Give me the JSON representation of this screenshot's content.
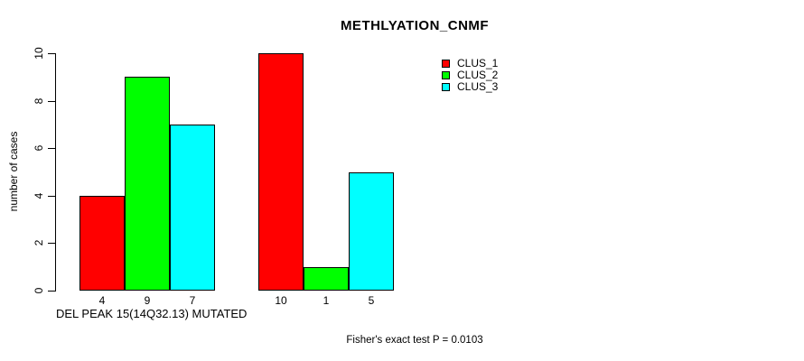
{
  "chart_data": {
    "type": "bar",
    "title": "METHLYATION_CNMF",
    "ylabel": "number of cases",
    "xlabel": "DEL PEAK 15(14Q32.13) MUTATED",
    "footer": "Fisher's exact test P = 0.0103",
    "ylim": [
      0,
      10
    ],
    "yticks": [
      0,
      2,
      4,
      6,
      8,
      10
    ],
    "grid": false,
    "legend_position": "top-right",
    "series_names": [
      "CLUS_1",
      "CLUS_2",
      "CLUS_3"
    ],
    "series_colors": [
      "#ff0000",
      "#00ff00",
      "#00ffff"
    ],
    "groups": [
      {
        "values": [
          4,
          9,
          7
        ],
        "bar_labels": [
          "4",
          "9",
          "7"
        ]
      },
      {
        "values": [
          10,
          1,
          5
        ],
        "bar_labels": [
          "10",
          "1",
          "5"
        ]
      }
    ],
    "legend": [
      {
        "label": "CLUS_1",
        "color": "#ff0000"
      },
      {
        "label": "CLUS_2",
        "color": "#00ff00"
      },
      {
        "label": "CLUS_3",
        "color": "#00ffff"
      }
    ]
  }
}
